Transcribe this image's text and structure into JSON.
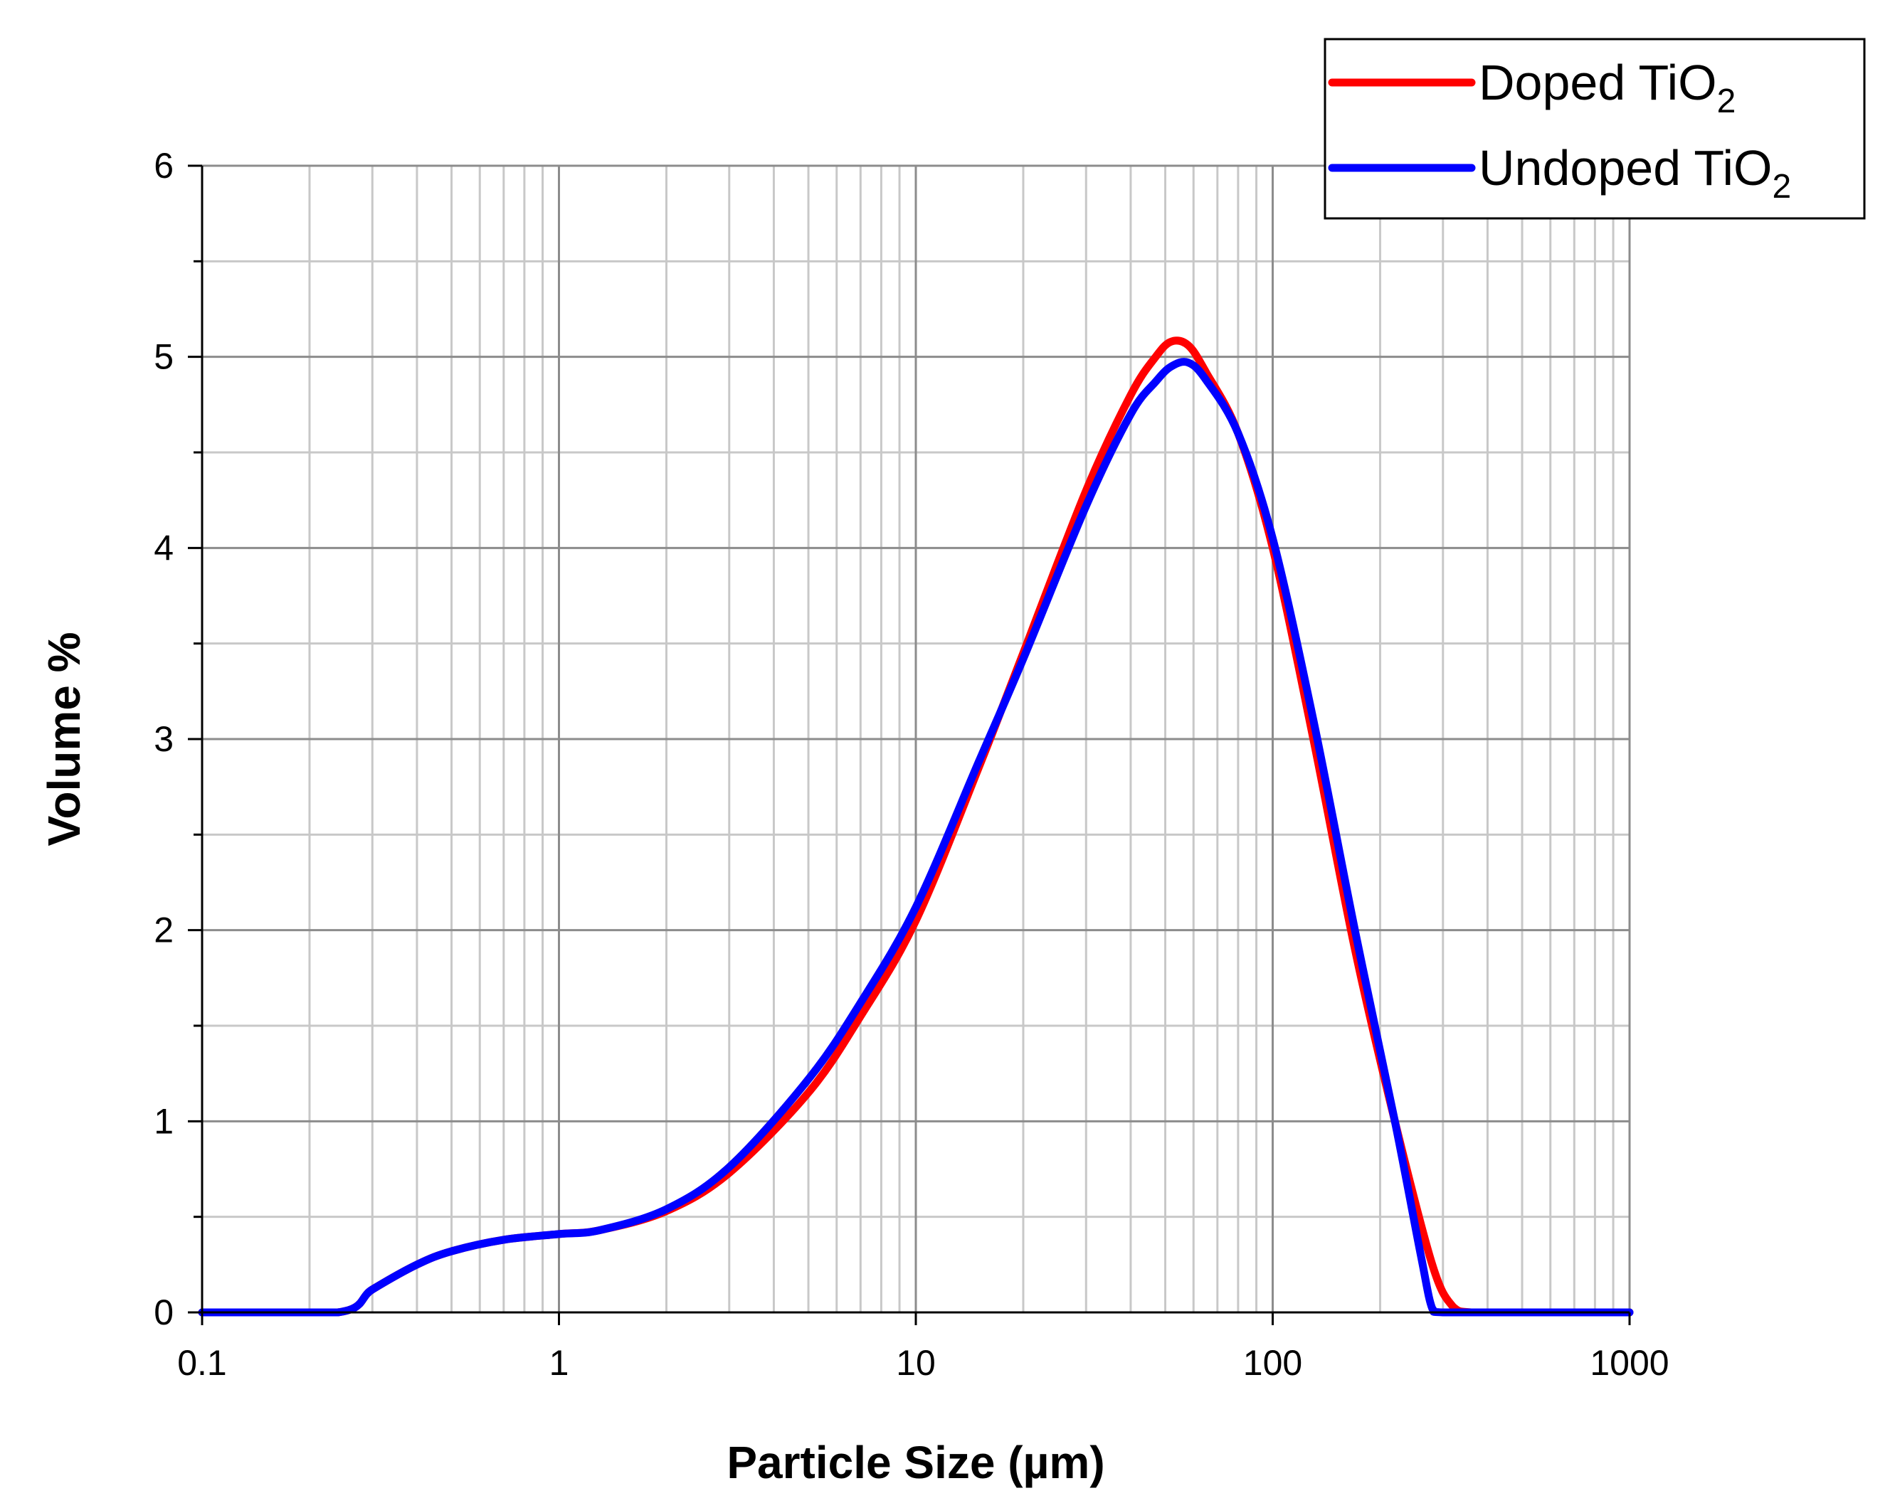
{
  "chart_data": {
    "type": "line",
    "title": "",
    "xlabel": "Particle Size (µm)",
    "ylabel": "Volume %",
    "xscale": "log",
    "xlim": [
      0.1,
      1000
    ],
    "ylim": [
      0,
      6
    ],
    "xticks": [
      {
        "value": 0.1,
        "label": "0.1"
      },
      {
        "value": 1,
        "label": "1"
      },
      {
        "value": 10,
        "label": "10"
      },
      {
        "value": 100,
        "label": "100"
      },
      {
        "value": 1000,
        "label": "1000"
      }
    ],
    "yticks": [
      {
        "value": 0,
        "label": "0"
      },
      {
        "value": 1,
        "label": "1"
      },
      {
        "value": 2,
        "label": "2"
      },
      {
        "value": 3,
        "label": "3"
      },
      {
        "value": 4,
        "label": "4"
      },
      {
        "value": 5,
        "label": "5"
      },
      {
        "value": 6,
        "label": "6"
      }
    ],
    "grid": true,
    "legend_position": "top-right",
    "series": [
      {
        "name": "Doped TiO2",
        "legend_label": "Doped TiO",
        "legend_subscript": "2",
        "color": "#ff0000",
        "x": [
          0.1,
          0.24,
          0.3,
          0.4,
          0.5,
          0.7,
          1.0,
          1.3,
          2.0,
          3.0,
          5.0,
          7.0,
          10,
          15,
          20,
          30,
          40,
          47,
          52,
          58,
          65,
          80,
          100,
          130,
          170,
          220,
          280,
          320,
          360,
          500,
          1000
        ],
        "y": [
          0,
          0,
          0.12,
          0.25,
          0.32,
          0.38,
          0.41,
          0.43,
          0.53,
          0.73,
          1.15,
          1.55,
          2.05,
          2.85,
          3.45,
          4.3,
          4.8,
          5.0,
          5.08,
          5.06,
          4.92,
          4.6,
          4.0,
          3.0,
          1.9,
          1.0,
          0.25,
          0.03,
          0,
          0,
          0
        ]
      },
      {
        "name": "Undoped TiO2",
        "legend_label": "Undoped TiO",
        "legend_subscript": "2",
        "color": "#0000ff",
        "x": [
          0.1,
          0.24,
          0.3,
          0.4,
          0.5,
          0.7,
          1.0,
          1.3,
          2.0,
          3.0,
          5.0,
          7.0,
          10,
          15,
          20,
          30,
          40,
          47,
          52,
          58,
          65,
          80,
          100,
          130,
          170,
          220,
          260,
          280,
          300,
          500,
          1000
        ],
        "y": [
          0,
          0,
          0.12,
          0.25,
          0.32,
          0.38,
          0.41,
          0.43,
          0.54,
          0.76,
          1.22,
          1.62,
          2.12,
          2.88,
          3.42,
          4.22,
          4.7,
          4.87,
          4.95,
          4.97,
          4.88,
          4.6,
          4.05,
          3.1,
          2.0,
          1.0,
          0.3,
          0.02,
          0,
          0,
          0
        ]
      }
    ]
  }
}
